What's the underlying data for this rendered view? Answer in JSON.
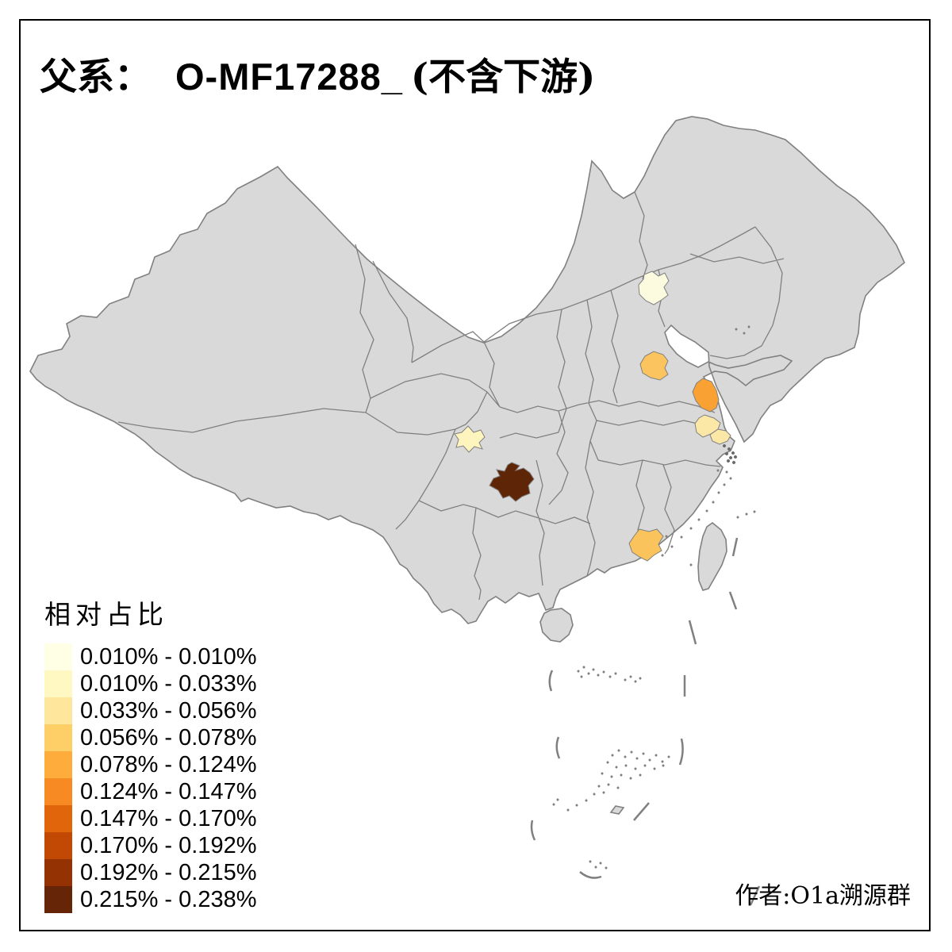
{
  "title": {
    "prefix": "父系：",
    "haplogroup": "O-MF17288_",
    "suffix": "(不含下游)",
    "full_text": "父系： O-MF17288_ (不含下游)"
  },
  "attribution": "作者:O1a溯源群",
  "legend": {
    "title": "相对占比",
    "items": [
      {
        "label": "0.010% - 0.010%",
        "color": "#FFFFE5"
      },
      {
        "label": "0.010% - 0.033%",
        "color": "#FFF8C3"
      },
      {
        "label": "0.033% - 0.056%",
        "color": "#FEE79C"
      },
      {
        "label": "0.056% - 0.078%",
        "color": "#FECF66"
      },
      {
        "label": "0.078% - 0.124%",
        "color": "#FEAD3D"
      },
      {
        "label": "0.124% - 0.147%",
        "color": "#F78A22"
      },
      {
        "label": "0.147% - 0.170%",
        "color": "#E1660B"
      },
      {
        "label": "0.170% - 0.192%",
        "color": "#C24903"
      },
      {
        "label": "0.192% - 0.215%",
        "color": "#943204"
      },
      {
        "label": "0.215% - 0.238%",
        "color": "#662506"
      }
    ]
  },
  "map": {
    "background": "#FFFFFF",
    "land_color": "#D9D9D9",
    "border_color": "#808080",
    "frame_color": "#000000",
    "regions": [
      {
        "id": "beijing-area",
        "color": "#FCFADF",
        "range": "0.010% - 0.010%"
      },
      {
        "id": "chengdu-area",
        "color": "#FDF4BE",
        "range": "0.010% - 0.033%"
      },
      {
        "id": "mid-jiangsu-area",
        "color": "#FBE8A6",
        "range": "0.033% - 0.056%"
      },
      {
        "id": "south-jiangsu-area",
        "color": "#FBE8A6",
        "range": "0.033% - 0.056%"
      },
      {
        "id": "southwest-shandong-area",
        "color": "#FCC45F",
        "range": "0.056% - 0.078%"
      },
      {
        "id": "east-guangdong-area",
        "color": "#FBC35C",
        "range": "0.056% - 0.078%"
      },
      {
        "id": "central-jiangsu-coast",
        "color": "#F9A133",
        "range": "0.078% - 0.124%"
      },
      {
        "id": "north-guizhou-area",
        "color": "#5F2507",
        "range": "0.215% - 0.238%"
      }
    ]
  },
  "chart_data": {
    "type": "heatmap",
    "subtype": "choropleth-map-of-china",
    "title": "父系： O-MF17288_ (不含下游)",
    "legend_title": "相对占比",
    "legend_position": "bottom-left",
    "classes": [
      {
        "range": "0.010% - 0.010%",
        "color": "#FFFFE5"
      },
      {
        "range": "0.010% - 0.033%",
        "color": "#FFF8C3"
      },
      {
        "range": "0.033% - 0.056%",
        "color": "#FEE79C"
      },
      {
        "range": "0.056% - 0.078%",
        "color": "#FECF66"
      },
      {
        "range": "0.078% - 0.124%",
        "color": "#FEAD3D"
      },
      {
        "range": "0.124% - 0.147%",
        "color": "#F78A22"
      },
      {
        "range": "0.147% - 0.170%",
        "color": "#E1660B"
      },
      {
        "range": "0.170% - 0.192%",
        "color": "#C24903"
      },
      {
        "range": "0.192% - 0.215%",
        "color": "#943204"
      },
      {
        "range": "0.215% - 0.238%",
        "color": "#662506"
      }
    ],
    "highlighted_regions": [
      {
        "location": "beijing-area",
        "range": "0.010% - 0.010%"
      },
      {
        "location": "chengdu-area",
        "range": "0.010% - 0.033%"
      },
      {
        "location": "mid-jiangsu-area",
        "range": "0.033% - 0.056%"
      },
      {
        "location": "south-jiangsu-area",
        "range": "0.033% - 0.056%"
      },
      {
        "location": "southwest-shandong-area",
        "range": "0.056% - 0.078%"
      },
      {
        "location": "east-guangdong-area",
        "range": "0.056% - 0.078%"
      },
      {
        "location": "central-jiangsu-coast",
        "range": "0.078% - 0.124%"
      },
      {
        "location": "north-guizhou-area",
        "range": "0.215% - 0.238%"
      }
    ],
    "annotations": [
      "作者:O1a溯源群"
    ]
  }
}
